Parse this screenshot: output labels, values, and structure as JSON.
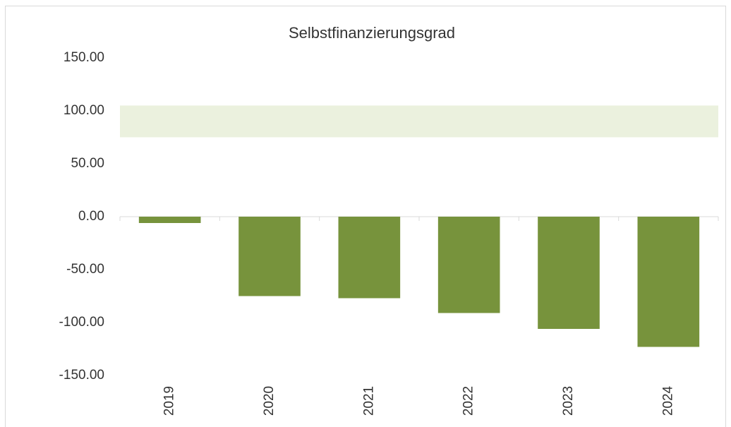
{
  "chart_data": {
    "type": "bar",
    "title": "Selbstfinanzierungsgrad",
    "categories": [
      "2019",
      "2020",
      "2021",
      "2022",
      "2023",
      "2024"
    ],
    "values": [
      -6,
      -75,
      -77,
      -91,
      -106,
      -123
    ],
    "color": "#77933c",
    "target_band": [
      75,
      105
    ],
    "band_color": "#ebf1de",
    "ylim": [
      -150,
      150
    ],
    "yticks": [
      {
        "value": -150,
        "label": "-150.00"
      },
      {
        "value": -100,
        "label": "-100.00"
      },
      {
        "value": -50,
        "label": "-50.00"
      },
      {
        "value": 0,
        "label": "0.00"
      },
      {
        "value": 50,
        "label": "50.00"
      },
      {
        "value": 100,
        "label": "100.00"
      },
      {
        "value": 150,
        "label": "150.00"
      }
    ],
    "grid": false
  }
}
